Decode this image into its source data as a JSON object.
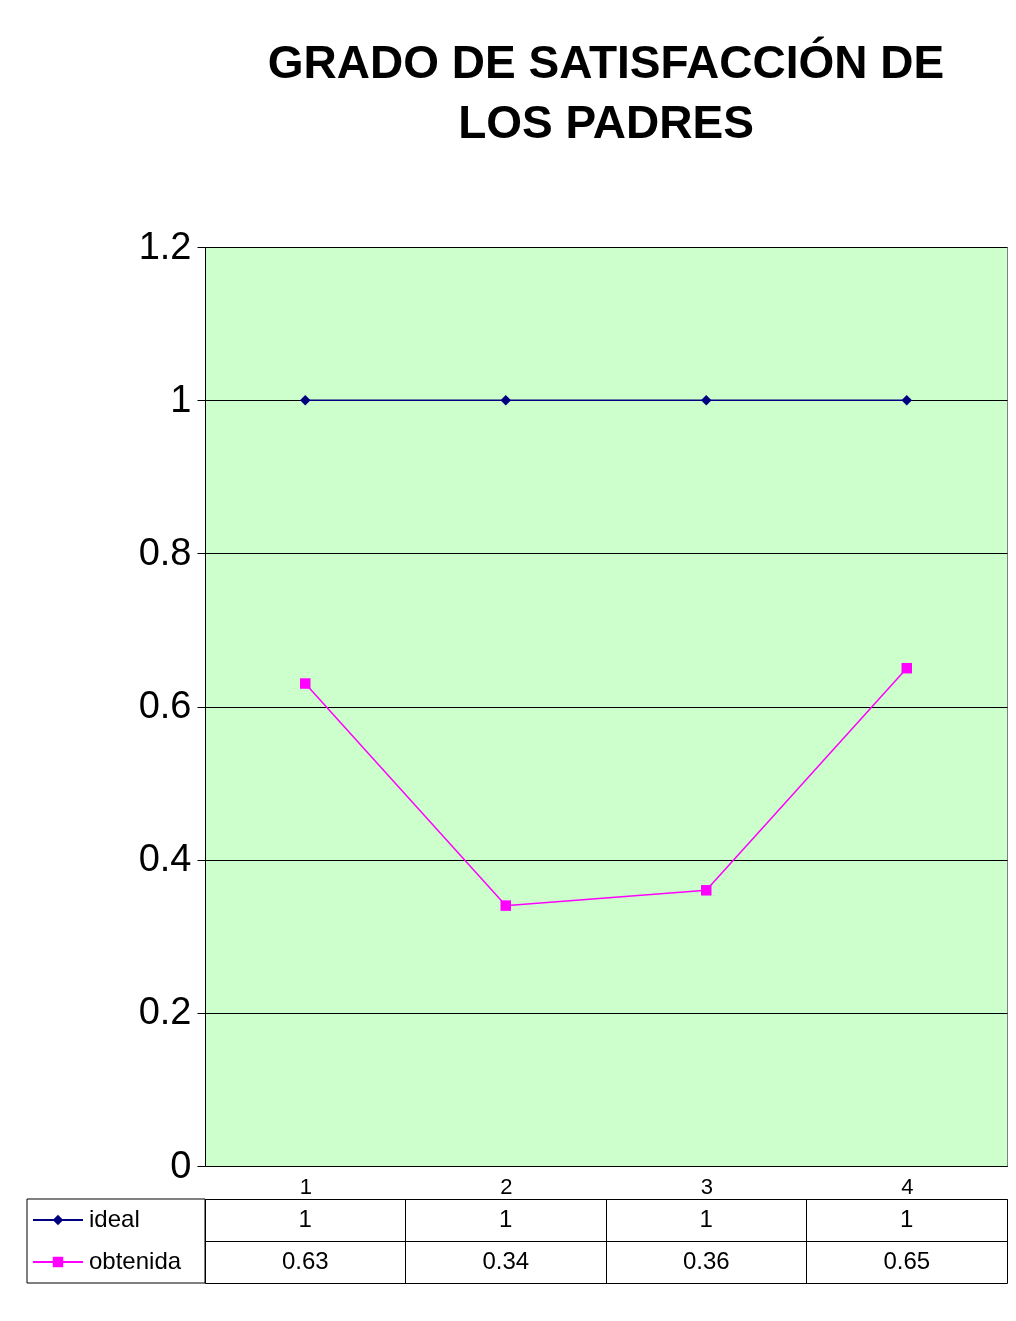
{
  "chart_data": {
    "type": "line",
    "title": "GRADO DE SATISFACCIÓN  DE LOS PADRES",
    "categories": [
      "1",
      "2",
      "3",
      "4"
    ],
    "series": [
      {
        "name": "ideal",
        "color": "#000080",
        "marker": "diamond",
        "values": [
          1,
          1,
          1,
          1
        ]
      },
      {
        "name": "obtenida",
        "color": "#ff00ff",
        "marker": "square",
        "values": [
          0.63,
          0.34,
          0.36,
          0.65
        ]
      }
    ],
    "ylim": [
      0,
      1.2
    ],
    "yticks": [
      0,
      0.2,
      0.4,
      0.6,
      0.8,
      1,
      1.2
    ],
    "grid": "y",
    "legend": "bottom left",
    "data_labels": true
  }
}
